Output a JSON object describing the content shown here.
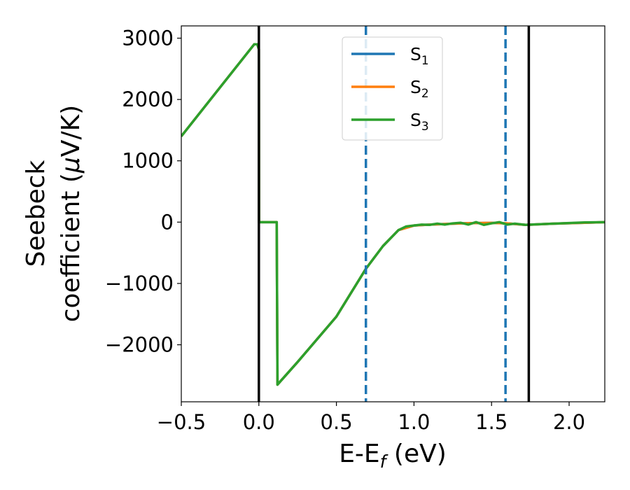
{
  "chart_data": {
    "type": "line",
    "title": "",
    "xlabel_parts": {
      "main": "E-E",
      "sub": "f",
      "tail": " (eV)"
    },
    "ylabel_line1": "Seebeck",
    "ylabel_line2_prefix": "coefficient  (",
    "ylabel_line2_mu": "μ",
    "ylabel_line2_suffix": "V/K)",
    "xlim": [
      -0.5,
      2.23
    ],
    "ylim": [
      -2930,
      3200
    ],
    "x_ticks": [
      -0.5,
      0.0,
      0.5,
      1.0,
      1.5,
      2.0
    ],
    "x_tick_labels": [
      "−0.5",
      "0.0",
      "0.5",
      "1.0",
      "1.5",
      "2.0"
    ],
    "y_ticks": [
      -2000,
      -1000,
      0,
      1000,
      2000,
      3000
    ],
    "y_tick_labels": [
      "−2000",
      "−1000",
      "0",
      "1000",
      "2000",
      "3000"
    ],
    "grid": false,
    "legend_placement": "upper-center",
    "series": [
      {
        "name_main": "S",
        "name_sub": "1",
        "color": "#1f77b4",
        "points": [
          [
            -0.5,
            1400
          ],
          [
            -0.03,
            2900
          ],
          [
            -0.01,
            2900
          ],
          [
            0.0,
            2820
          ],
          [
            0.001,
            0
          ],
          [
            0.115,
            0
          ],
          [
            0.12,
            -2650
          ],
          [
            0.25,
            -2280
          ],
          [
            0.5,
            -1540
          ],
          [
            0.69,
            -760
          ],
          [
            0.8,
            -390
          ],
          [
            0.9,
            -130
          ],
          [
            1.0,
            -55
          ],
          [
            1.1,
            -40
          ],
          [
            1.2,
            -30
          ],
          [
            1.3,
            -20
          ],
          [
            1.4,
            -15
          ],
          [
            1.5,
            -12
          ],
          [
            1.6,
            -20
          ],
          [
            1.72,
            -45
          ],
          [
            1.9,
            -25
          ],
          [
            2.1,
            -10
          ],
          [
            2.23,
            0
          ]
        ]
      },
      {
        "name_main": "S",
        "name_sub": "2",
        "color": "#ff7f0e",
        "points": [
          [
            -0.5,
            1400
          ],
          [
            -0.03,
            2900
          ],
          [
            -0.01,
            2900
          ],
          [
            0.0,
            2820
          ],
          [
            0.001,
            0
          ],
          [
            0.115,
            0
          ],
          [
            0.12,
            -2650
          ],
          [
            0.25,
            -2280
          ],
          [
            0.5,
            -1540
          ],
          [
            0.69,
            -760
          ],
          [
            0.8,
            -390
          ],
          [
            0.9,
            -130
          ],
          [
            1.0,
            -55
          ],
          [
            1.1,
            -40
          ],
          [
            1.2,
            -30
          ],
          [
            1.3,
            -20
          ],
          [
            1.4,
            -15
          ],
          [
            1.5,
            -12
          ],
          [
            1.6,
            -20
          ],
          [
            1.72,
            -45
          ],
          [
            1.9,
            -25
          ],
          [
            2.1,
            -10
          ],
          [
            2.23,
            0
          ]
        ]
      },
      {
        "name_main": "S",
        "name_sub": "3",
        "color": "#2ca02c",
        "points": [
          [
            -0.5,
            1400
          ],
          [
            -0.03,
            2900
          ],
          [
            -0.01,
            2900
          ],
          [
            0.0,
            2820
          ],
          [
            0.001,
            0
          ],
          [
            0.115,
            0
          ],
          [
            0.12,
            -2650
          ],
          [
            0.25,
            -2280
          ],
          [
            0.5,
            -1540
          ],
          [
            0.69,
            -760
          ],
          [
            0.8,
            -390
          ],
          [
            0.9,
            -130
          ],
          [
            0.95,
            -70
          ],
          [
            1.0,
            -55
          ],
          [
            1.05,
            -40
          ],
          [
            1.1,
            -45
          ],
          [
            1.15,
            -25
          ],
          [
            1.2,
            -40
          ],
          [
            1.25,
            -20
          ],
          [
            1.3,
            -10
          ],
          [
            1.35,
            -40
          ],
          [
            1.4,
            0
          ],
          [
            1.45,
            -45
          ],
          [
            1.5,
            -20
          ],
          [
            1.55,
            0
          ],
          [
            1.6,
            -40
          ],
          [
            1.65,
            -25
          ],
          [
            1.72,
            -45
          ],
          [
            1.8,
            -35
          ],
          [
            1.9,
            -25
          ],
          [
            2.0,
            -15
          ],
          [
            2.1,
            -5
          ],
          [
            2.23,
            0
          ]
        ]
      }
    ],
    "vlines": [
      {
        "x": 0.0,
        "style": "solid",
        "color": "#000000"
      },
      {
        "x": 0.69,
        "style": "dashed",
        "color": "#1f77b4"
      },
      {
        "x": 1.59,
        "style": "dashed",
        "color": "#1f77b4"
      },
      {
        "x": 1.74,
        "style": "solid",
        "color": "#000000"
      }
    ]
  }
}
